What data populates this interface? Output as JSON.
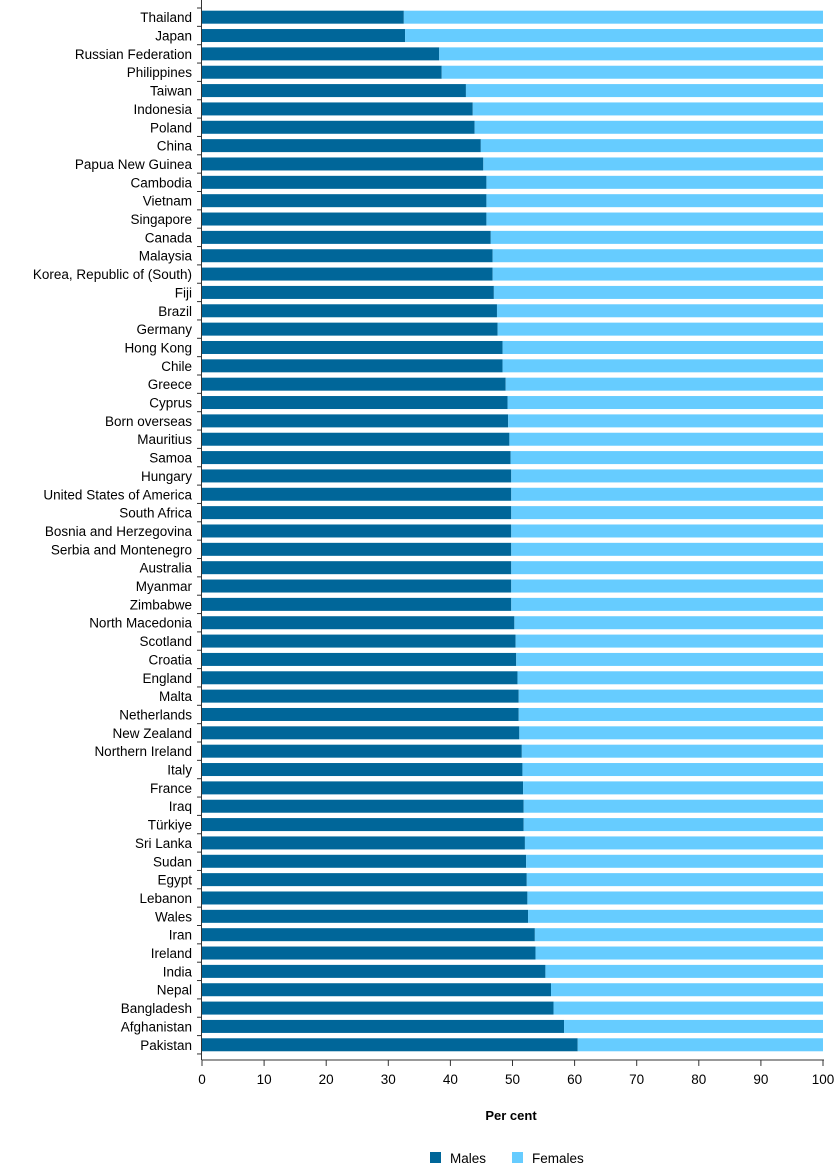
{
  "chart_data": {
    "type": "bar",
    "orientation": "horizontal",
    "stacked": true,
    "categories": [
      "Thailand",
      "Japan",
      "Russian Federation",
      "Philippines",
      "Taiwan",
      "Indonesia",
      "Poland",
      "China",
      "Papua New Guinea",
      "Cambodia",
      "Vietnam",
      "Singapore",
      "Canada",
      "Malaysia",
      "Korea, Republic of (South)",
      "Fiji",
      "Brazil",
      "Germany",
      "Hong Kong",
      "Chile",
      "Greece",
      "Cyprus",
      "Born overseas",
      "Mauritius",
      "Samoa",
      "Hungary",
      "United States of America",
      "South Africa",
      "Bosnia and Herzegovina",
      "Serbia and Montenegro",
      "Australia",
      "Myanmar",
      "Zimbabwe",
      "North Macedonia",
      "Scotland",
      "Croatia",
      "England",
      "Malta",
      "Netherlands",
      "New Zealand",
      "Northern Ireland",
      "Italy",
      "France",
      "Iraq",
      "Türkiye",
      "Sri Lanka",
      "Sudan",
      "Egypt",
      "Lebanon",
      "Wales",
      "Iran",
      "Ireland",
      "India",
      "Nepal",
      "Bangladesh",
      "Afghanistan",
      "Pakistan"
    ],
    "series": [
      {
        "name": "Males",
        "color": "#006699",
        "values": [
          32.5,
          32.7,
          38.2,
          38.6,
          42.5,
          43.6,
          43.9,
          44.9,
          45.3,
          45.8,
          45.8,
          45.8,
          46.5,
          46.8,
          46.8,
          47.0,
          47.5,
          47.6,
          48.4,
          48.4,
          48.9,
          49.2,
          49.3,
          49.5,
          49.7,
          49.8,
          49.8,
          49.8,
          49.8,
          49.8,
          49.8,
          49.8,
          49.8,
          50.3,
          50.5,
          50.6,
          50.8,
          51.0,
          51.0,
          51.1,
          51.5,
          51.6,
          51.7,
          51.8,
          51.8,
          52.0,
          52.2,
          52.3,
          52.4,
          52.5,
          53.6,
          53.7,
          55.3,
          56.2,
          56.6,
          58.3,
          60.5
        ]
      },
      {
        "name": "Females",
        "color": "#66ccff",
        "values": [
          67.5,
          67.3,
          61.8,
          61.4,
          57.5,
          56.4,
          56.1,
          55.1,
          54.7,
          54.2,
          54.2,
          54.2,
          53.5,
          53.2,
          53.2,
          53.0,
          52.5,
          52.4,
          51.6,
          51.6,
          51.1,
          50.8,
          50.7,
          50.5,
          50.3,
          50.2,
          50.2,
          50.2,
          50.2,
          50.2,
          50.2,
          50.2,
          50.2,
          49.7,
          49.5,
          49.4,
          49.2,
          49.0,
          49.0,
          48.9,
          48.5,
          48.4,
          48.3,
          48.2,
          48.2,
          48.0,
          47.8,
          47.7,
          47.6,
          47.5,
          46.4,
          46.3,
          44.7,
          43.8,
          43.4,
          41.7,
          39.5
        ]
      }
    ],
    "xlabel": "Per cent",
    "ylabel": "",
    "xlim": [
      0,
      100
    ],
    "xticks": [
      "0",
      "10",
      "20",
      "30",
      "40",
      "50",
      "60",
      "70",
      "80",
      "90",
      "100"
    ],
    "grid": false,
    "legend_placement": "bottom"
  }
}
